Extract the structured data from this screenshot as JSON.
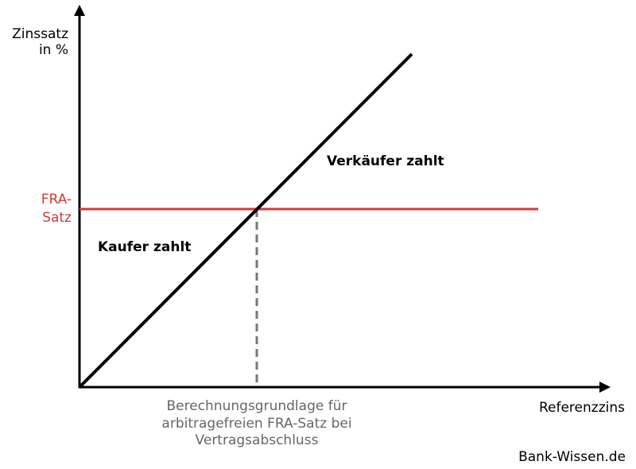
{
  "y_axis_label": [
    "Zinssatz",
    "in %"
  ],
  "x_axis_label": "Referenzzins",
  "fra_label": [
    "FRA-",
    "Satz"
  ],
  "regions": {
    "seller": "Verkäufer zahlt",
    "buyer": "Kaufer zahlt"
  },
  "caption": [
    "Berechnungsgrundlage für",
    "arbitragefreien FRA-Satz bei",
    "Vertragsabschluss"
  ],
  "source": "Bank-Wissen.de"
}
